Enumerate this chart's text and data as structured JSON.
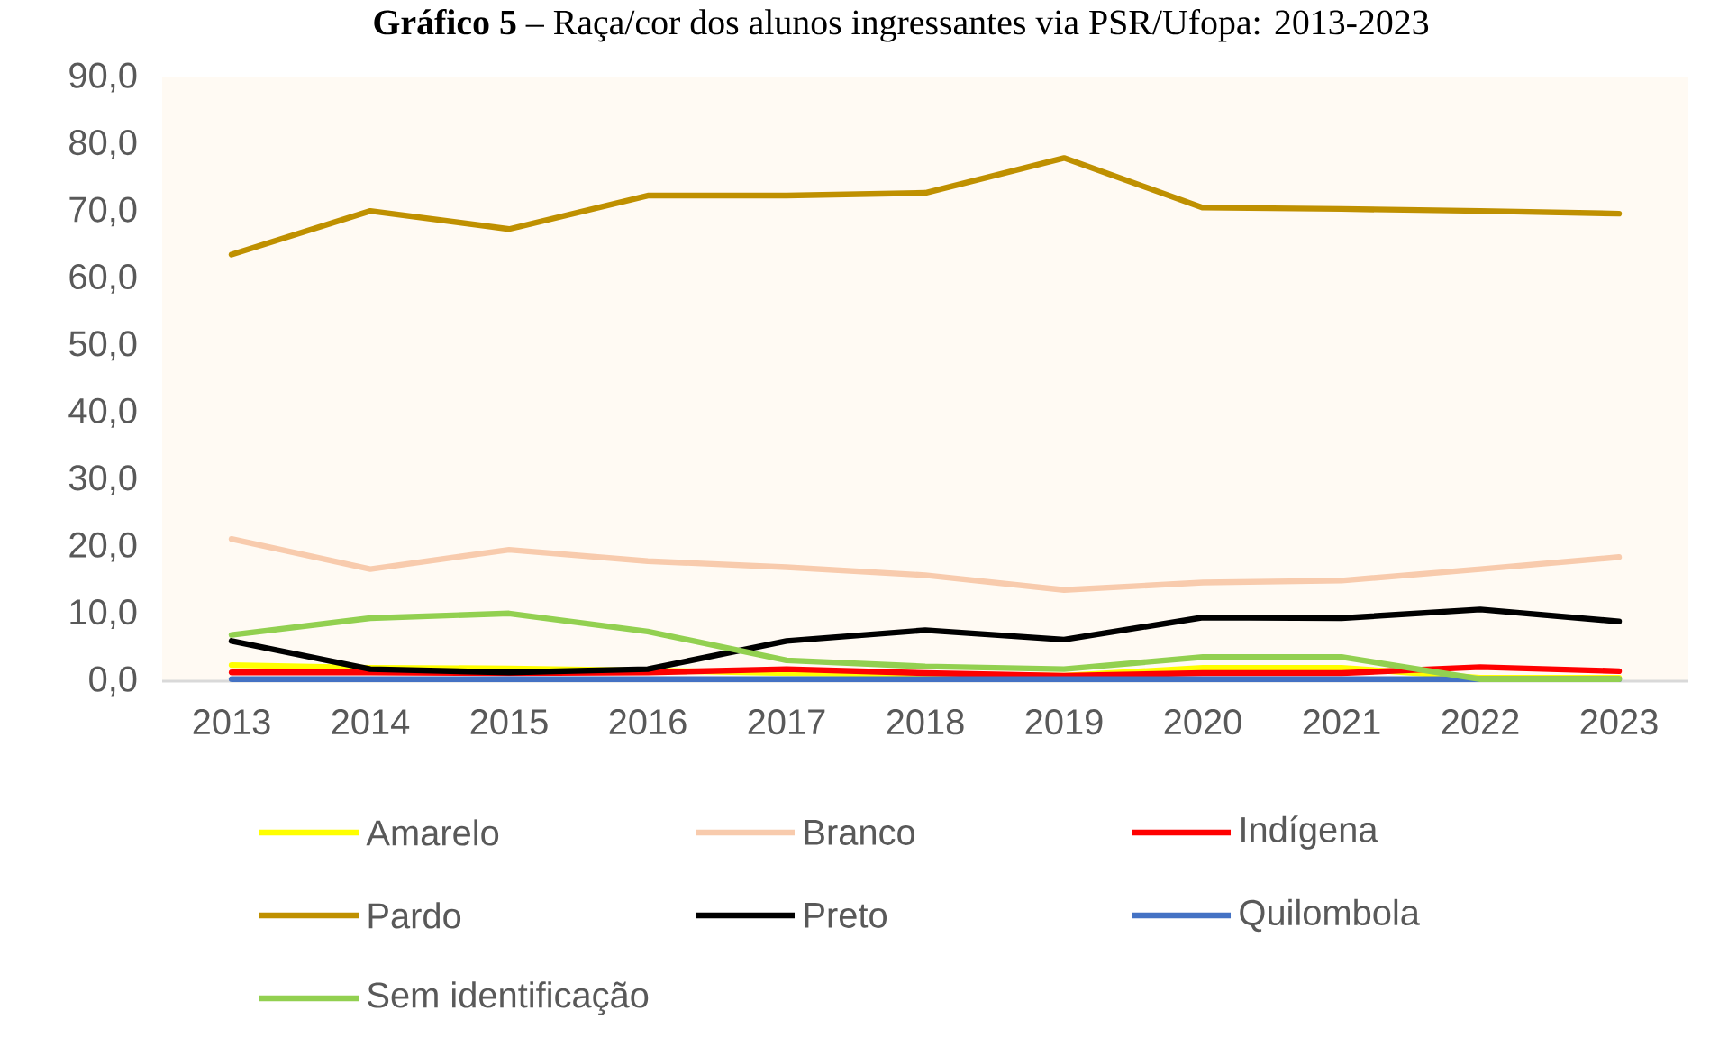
{
  "chart_data": {
    "type": "line",
    "title": "**Gráfico 5** – Raça/cor dos alunos ingressantes via PSR/Ufopa: 2013-2023",
    "categories": [
      "2013",
      "2014",
      "2015",
      "2016",
      "2017",
      "2018",
      "2019",
      "2020",
      "2021",
      "2022",
      "2023"
    ],
    "series": [
      {
        "name": "Amarelo",
        "color": "#ffff00",
        "values": [
          2.4,
          2.0,
          1.9,
          1.6,
          1.2,
          1.0,
          0.8,
          2.0,
          2.0,
          0.5,
          0.5
        ]
      },
      {
        "name": "Branco",
        "color": "#f8cbad",
        "values": [
          21.2,
          16.7,
          19.6,
          17.9,
          17.0,
          15.8,
          13.6,
          14.7,
          15.0,
          16.7,
          18.5
        ]
      },
      {
        "name": "Indígena",
        "color": "#ff0000",
        "values": [
          1.3,
          1.3,
          1.2,
          1.3,
          1.8,
          1.2,
          0.8,
          1.2,
          1.2,
          2.1,
          1.5
        ]
      },
      {
        "name": "Pardo",
        "color": "#bf9000",
        "values": [
          63.6,
          70.1,
          67.4,
          72.4,
          72.4,
          72.8,
          78.0,
          70.6,
          70.4,
          70.1,
          69.7
        ]
      },
      {
        "name": "Preto",
        "color": "#000000",
        "values": [
          6.0,
          1.8,
          1.3,
          1.8,
          6.0,
          7.6,
          6.2,
          9.5,
          9.4,
          10.7,
          8.9
        ]
      },
      {
        "name": "Quilombola",
        "color": "#4472c4",
        "values": [
          0.3,
          0.3,
          0.3,
          0.3,
          0.3,
          0.3,
          0.3,
          0.3,
          0.3,
          0.3,
          0.3
        ]
      },
      {
        "name": "Sem identificação",
        "color": "#92d050",
        "values": [
          6.9,
          9.4,
          10.1,
          7.4,
          3.1,
          2.2,
          1.8,
          3.6,
          3.6,
          0.3,
          0.3
        ]
      }
    ],
    "ylim": [
      0,
      90
    ],
    "yticks": [
      {
        "value": 0,
        "label": "0,0"
      },
      {
        "value": 10,
        "label": "10,0"
      },
      {
        "value": 20,
        "label": "20,0"
      },
      {
        "value": 30,
        "label": "30,0"
      },
      {
        "value": 40,
        "label": "40,0"
      },
      {
        "value": 50,
        "label": "50,0"
      },
      {
        "value": 60,
        "label": "60,0"
      },
      {
        "value": 70,
        "label": "70,0"
      },
      {
        "value": 80,
        "label": "80,0"
      },
      {
        "value": 90,
        "label": "90,0"
      }
    ],
    "legend": "bottom"
  }
}
